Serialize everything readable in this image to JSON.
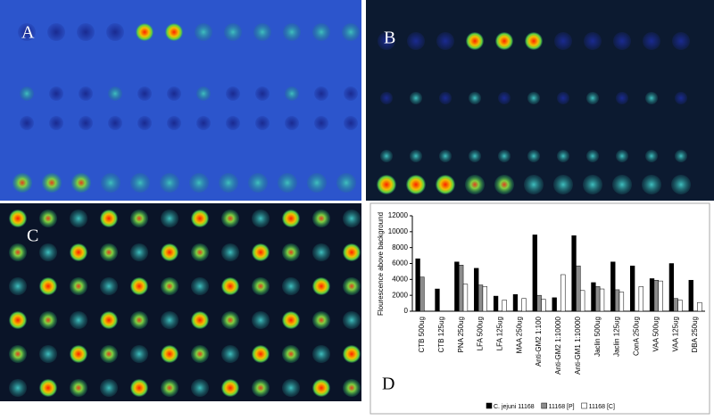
{
  "panels": [
    {
      "label": "A"
    },
    {
      "label": "B"
    },
    {
      "label": "C"
    },
    {
      "label": "D"
    }
  ],
  "chart_data": {
    "type": "bar",
    "y_label": "Flourescence above background",
    "categories": [
      "CTB 500ug",
      "CTB 125ug",
      "PNA 250ug",
      "LFA 500ug",
      "LFA 125ug",
      "MAA 250ug",
      "Anti-GM2 1:100",
      "Anti-GM2 1:10000",
      "Anti-GM1 1:10000",
      "Jaclin 500ug",
      "Jaclin 125ug",
      "ConA 250ug",
      "VAA 500ug",
      "VAA 125ug",
      "DBA 250ug"
    ],
    "series": [
      {
        "name": "C. jejuni 11168",
        "color": "#000000",
        "values": [
          6600,
          2800,
          6200,
          5400,
          1900,
          2100,
          9600,
          1700,
          9500,
          3600,
          6200,
          5700,
          4100,
          6000,
          3900
        ]
      },
      {
        "name": "11168 [P]",
        "color": "#8c8c8c",
        "values": [
          4300,
          0,
          5800,
          3300,
          0,
          0,
          2000,
          0,
          5700,
          3100,
          2700,
          0,
          3900,
          1600,
          0
        ]
      },
      {
        "name": "11168 [C]",
        "color": "#ffffff",
        "values": [
          0,
          0,
          3400,
          3100,
          1400,
          1600,
          1500,
          4600,
          2600,
          2800,
          2400,
          3100,
          3800,
          1400,
          1100
        ]
      }
    ],
    "ylim": [
      0,
      12000
    ],
    "yticks": [
      0,
      2000,
      4000,
      6000,
      8000,
      10000,
      12000
    ]
  }
}
